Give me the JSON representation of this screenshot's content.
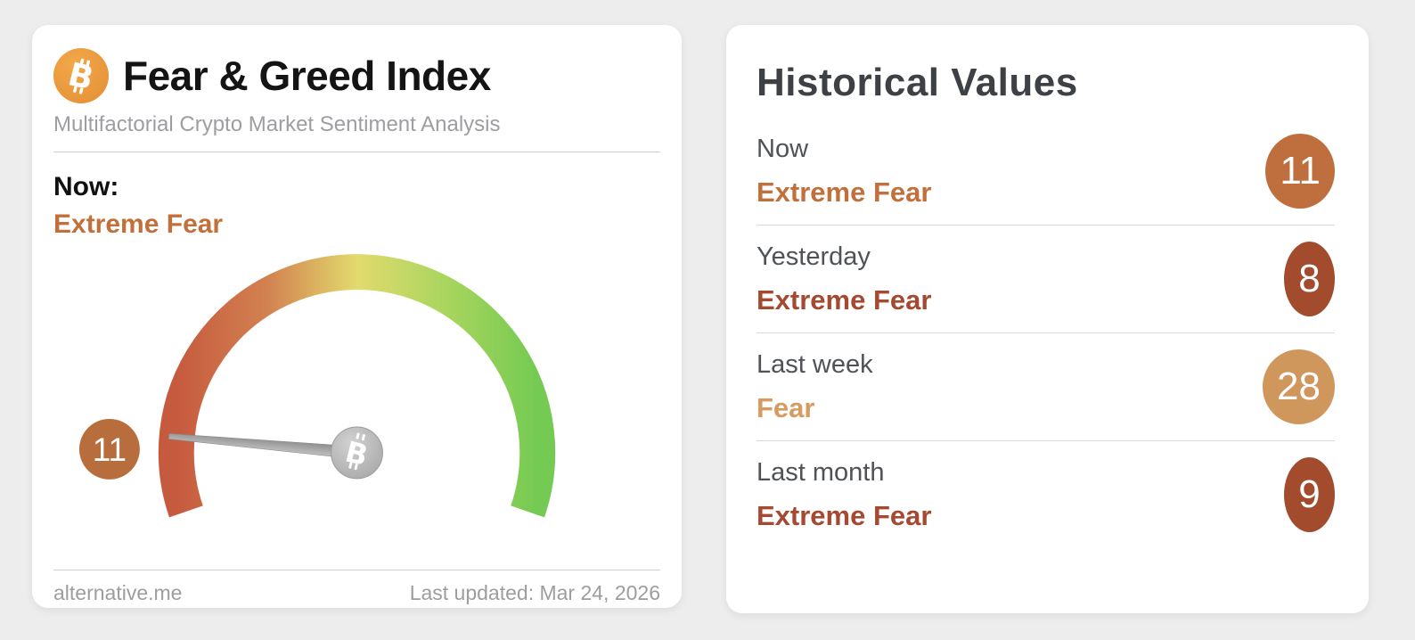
{
  "gauge_card": {
    "title": "Fear & Greed Index",
    "subtitle": "Multifactorial Crypto Market Sentiment Analysis",
    "now_label": "Now:",
    "now_classification": "Extreme Fear",
    "now_color": "#c2703b",
    "source_link": "alternative.me",
    "last_updated": "Last updated: Mar 24, 2026",
    "icons": {
      "logo": "bitcoin-circle-icon",
      "hub": "bitcoin-needle-hub-icon"
    },
    "gauge": {
      "value": 11,
      "min": 0,
      "max": 100,
      "badge_color": "#b86d3c",
      "arc_colors": [
        "#c65a3e",
        "#d28150",
        "#e2da6d",
        "#a8d55e",
        "#74ca52"
      ],
      "needle_color": "#9f9f9f",
      "logo_orange": "#ea9a3f"
    }
  },
  "history_card": {
    "title": "Historical Values",
    "rows": [
      {
        "label": "Now",
        "classification": "Extreme Fear",
        "value": "11",
        "color": "#c2703b",
        "badge_color": "#bf6f3d"
      },
      {
        "label": "Yesterday",
        "classification": "Extreme Fear",
        "value": "8",
        "color": "#a54a31",
        "badge_color": "#a34b2d"
      },
      {
        "label": "Last week",
        "classification": "Fear",
        "value": "28",
        "color": "#d79a5f",
        "badge_color": "#d0975c"
      },
      {
        "label": "Last month",
        "classification": "Extreme Fear",
        "value": "9",
        "color": "#a54a31",
        "badge_color": "#a34b2d"
      }
    ]
  },
  "chart_data": {
    "type": "gauge",
    "title": "Fear & Greed Index",
    "subtitle": "Multifactorial Crypto Market Sentiment Analysis",
    "value": 11,
    "min": 0,
    "max": 100,
    "classification": "Extreme Fear",
    "arc_sweep_degrees": 218,
    "arc_color_scale": [
      "#c65a3e",
      "#d28150",
      "#e2da6d",
      "#a8d55e",
      "#74ca52"
    ],
    "last_updated": "Mar 24, 2026",
    "source": "alternative.me",
    "history": [
      {
        "period": "Now",
        "value": 11,
        "classification": "Extreme Fear"
      },
      {
        "period": "Yesterday",
        "value": 8,
        "classification": "Extreme Fear"
      },
      {
        "period": "Last week",
        "value": 28,
        "classification": "Fear"
      },
      {
        "period": "Last month",
        "value": 9,
        "classification": "Extreme Fear"
      }
    ]
  }
}
